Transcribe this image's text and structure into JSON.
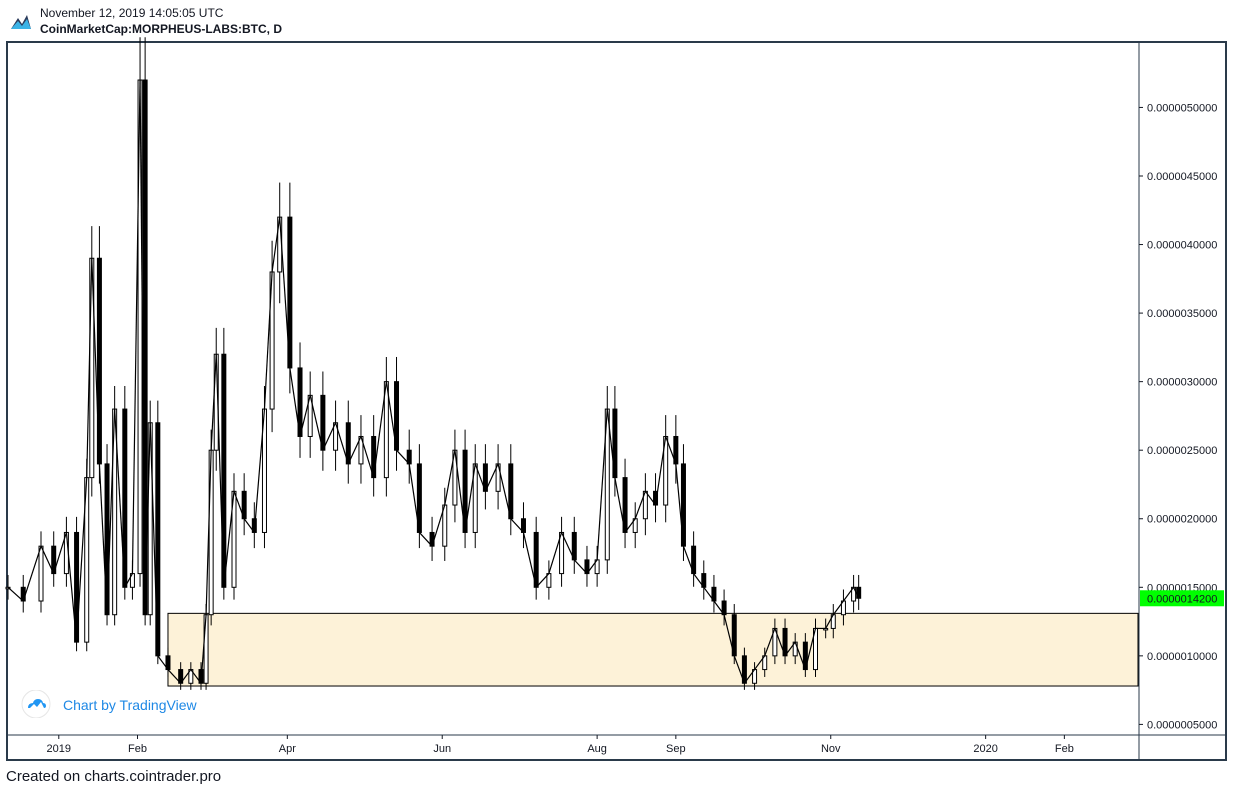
{
  "header": {
    "timestamp": "November 12, 2019 14:05:05 UTC",
    "symbol": "CoinMarketCap:MORPHEUS-LABS:BTC, D"
  },
  "watermark": {
    "text": "Chart by TradingView",
    "icon": "tradingview-cloud-icon"
  },
  "footer": {
    "text": "Created on charts.cointrader.pro"
  },
  "colors": {
    "candle": "#000000",
    "zone_fill": "#fdf2d8",
    "zone_border": "#000000",
    "price_tag_bg": "#00ff00",
    "frame": "#2a3a4a",
    "axis_text": "#131722"
  },
  "chart_data": {
    "type": "candlestick",
    "title": "",
    "xlabel": "",
    "ylabel": "",
    "x_ticks": [
      "2019",
      "Feb",
      "Apr",
      "Jun",
      "Aug",
      "Sep",
      "Nov",
      "2020",
      "Feb"
    ],
    "x_tick_dates": [
      "2019-01-01",
      "2019-02-01",
      "2019-04-01",
      "2019-06-01",
      "2019-08-01",
      "2019-09-01",
      "2019-11-01",
      "2020-01-01",
      "2020-02-01"
    ],
    "y_ticks": [
      "0.0000005000",
      "0.0000010000",
      "0.0000015000",
      "0.0000020000",
      "0.0000025000",
      "0.0000030000",
      "0.0000035000",
      "0.0000040000",
      "0.0000045000",
      "0.0000050000"
    ],
    "y_tick_values": [
      5e-07,
      1e-06,
      1.5e-06,
      2e-06,
      2.5e-06,
      3e-06,
      3.5e-06,
      4e-06,
      4.5e-06,
      5e-06
    ],
    "ylim": [
      4.3e-07,
      5.47e-06
    ],
    "xlim": [
      "2018-12-12",
      "2020-03-01"
    ],
    "last_price": "0.0000014200",
    "last_price_value": 1.42e-06,
    "zone": {
      "start": "2019-02-13",
      "end": "2020-03-01",
      "low": 7.8e-07,
      "high": 1.31e-06
    },
    "series": [
      {
        "values": [
          [
            "2018-12-12",
            1.5e-06
          ],
          [
            "2018-12-18",
            1.4e-06
          ],
          [
            "2018-12-25",
            1.8e-06
          ],
          [
            "2018-12-30",
            1.6e-06
          ],
          [
            "2019-01-04",
            1.9e-06
          ],
          [
            "2019-01-08",
            1.1e-06
          ],
          [
            "2019-01-12",
            2.3e-06
          ],
          [
            "2019-01-14",
            3.9e-06
          ],
          [
            "2019-01-17",
            2.4e-06
          ],
          [
            "2019-01-20",
            1.3e-06
          ],
          [
            "2019-01-23",
            2.8e-06
          ],
          [
            "2019-01-27",
            1.5e-06
          ],
          [
            "2019-01-30",
            1.6e-06
          ],
          [
            "2019-02-02",
            5.2e-06
          ],
          [
            "2019-02-04",
            1.3e-06
          ],
          [
            "2019-02-06",
            2.7e-06
          ],
          [
            "2019-02-09",
            1e-06
          ],
          [
            "2019-02-13",
            9e-07
          ],
          [
            "2019-02-18",
            8e-07
          ],
          [
            "2019-02-22",
            9e-07
          ],
          [
            "2019-02-26",
            8e-07
          ],
          [
            "2019-02-28",
            1.3e-06
          ],
          [
            "2019-03-02",
            2.5e-06
          ],
          [
            "2019-03-04",
            3.2e-06
          ],
          [
            "2019-03-07",
            1.5e-06
          ],
          [
            "2019-03-11",
            2.2e-06
          ],
          [
            "2019-03-15",
            2e-06
          ],
          [
            "2019-03-19",
            1.9e-06
          ],
          [
            "2019-03-23",
            2.8e-06
          ],
          [
            "2019-03-26",
            3.8e-06
          ],
          [
            "2019-03-29",
            4.2e-06
          ],
          [
            "2019-04-02",
            3.1e-06
          ],
          [
            "2019-04-06",
            2.6e-06
          ],
          [
            "2019-04-10",
            2.9e-06
          ],
          [
            "2019-04-15",
            2.5e-06
          ],
          [
            "2019-04-20",
            2.7e-06
          ],
          [
            "2019-04-25",
            2.4e-06
          ],
          [
            "2019-04-30",
            2.6e-06
          ],
          [
            "2019-05-05",
            2.3e-06
          ],
          [
            "2019-05-10",
            3e-06
          ],
          [
            "2019-05-14",
            2.5e-06
          ],
          [
            "2019-05-19",
            2.4e-06
          ],
          [
            "2019-05-23",
            1.9e-06
          ],
          [
            "2019-05-28",
            1.8e-06
          ],
          [
            "2019-06-02",
            2.1e-06
          ],
          [
            "2019-06-06",
            2.5e-06
          ],
          [
            "2019-06-10",
            1.9e-06
          ],
          [
            "2019-06-14",
            2.4e-06
          ],
          [
            "2019-06-18",
            2.2e-06
          ],
          [
            "2019-06-23",
            2.4e-06
          ],
          [
            "2019-06-28",
            2e-06
          ],
          [
            "2019-07-03",
            1.9e-06
          ],
          [
            "2019-07-08",
            1.5e-06
          ],
          [
            "2019-07-13",
            1.6e-06
          ],
          [
            "2019-07-18",
            1.9e-06
          ],
          [
            "2019-07-23",
            1.7e-06
          ],
          [
            "2019-07-28",
            1.6e-06
          ],
          [
            "2019-08-01",
            1.7e-06
          ],
          [
            "2019-08-05",
            2.8e-06
          ],
          [
            "2019-08-08",
            2.3e-06
          ],
          [
            "2019-08-12",
            1.9e-06
          ],
          [
            "2019-08-16",
            2e-06
          ],
          [
            "2019-08-20",
            2.2e-06
          ],
          [
            "2019-08-24",
            2.1e-06
          ],
          [
            "2019-08-28",
            2.6e-06
          ],
          [
            "2019-09-01",
            2.4e-06
          ],
          [
            "2019-09-04",
            1.8e-06
          ],
          [
            "2019-09-08",
            1.6e-06
          ],
          [
            "2019-09-12",
            1.5e-06
          ],
          [
            "2019-09-16",
            1.4e-06
          ],
          [
            "2019-09-20",
            1.3e-06
          ],
          [
            "2019-09-24",
            1e-06
          ],
          [
            "2019-09-28",
            8e-07
          ],
          [
            "2019-10-02",
            9e-07
          ],
          [
            "2019-10-06",
            1e-06
          ],
          [
            "2019-10-10",
            1.2e-06
          ],
          [
            "2019-10-14",
            1e-06
          ],
          [
            "2019-10-18",
            1.1e-06
          ],
          [
            "2019-10-22",
            9e-07
          ],
          [
            "2019-10-26",
            1.2e-06
          ],
          [
            "2019-10-30",
            1.2e-06
          ],
          [
            "2019-11-02",
            1.3e-06
          ],
          [
            "2019-11-06",
            1.4e-06
          ],
          [
            "2019-11-10",
            1.5e-06
          ],
          [
            "2019-11-12",
            1.42e-06
          ]
        ]
      }
    ]
  }
}
